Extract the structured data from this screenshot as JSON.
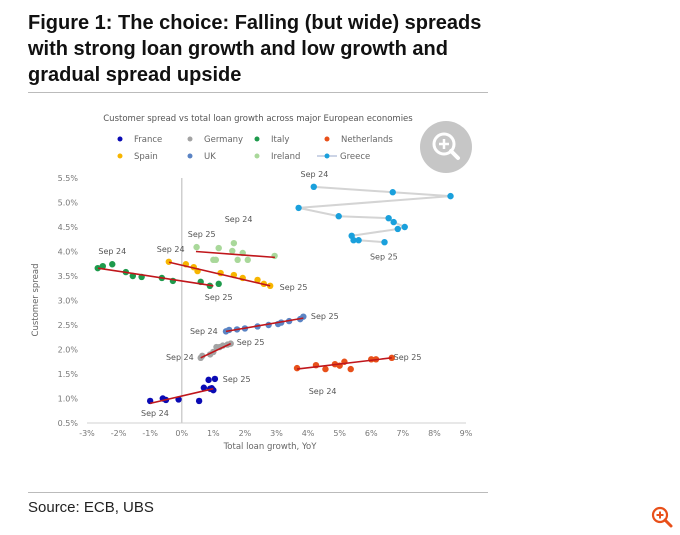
{
  "title": "Figure 1: The choice: Falling (but wide) spreads with strong loan growth and low growth and gradual spread upside",
  "source": "Source: ECB, UBS",
  "icons": {
    "chart_zoom": "zoom-in-icon",
    "corner_zoom": "zoom-in-icon"
  },
  "colors": {
    "trend": "#c0161b",
    "corner_icon": "#e8501a"
  },
  "chart_data": {
    "type": "scatter",
    "title": "Customer spread vs total loan growth across major European economies",
    "xlabel": "Total loan growth, YoY",
    "ylabel": "Customer spread",
    "xlim": [
      -3,
      9
    ],
    "ylim": [
      0.5,
      5.5
    ],
    "xticks": [
      "-3%",
      "-2%",
      "-1%",
      "0%",
      "1%",
      "2%",
      "3%",
      "4%",
      "5%",
      "6%",
      "7%",
      "8%",
      "9%"
    ],
    "yticks": [
      "0.5%",
      "1.0%",
      "1.5%",
      "2.0%",
      "2.5%",
      "3.0%",
      "3.5%",
      "4.0%",
      "4.5%",
      "5.0%",
      "5.5%"
    ],
    "grid": false,
    "legend_placement": "top",
    "series": [
      {
        "name": "France",
        "color": "#0a0ab4",
        "points": [
          [
            -1.0,
            0.95
          ],
          [
            -0.6,
            1.0
          ],
          [
            -0.5,
            0.97
          ],
          [
            -0.1,
            0.98
          ],
          [
            0.55,
            0.95
          ],
          [
            0.7,
            1.22
          ],
          [
            0.85,
            1.38
          ],
          [
            1.05,
            1.4
          ],
          [
            0.9,
            1.2
          ],
          [
            1.0,
            1.17
          ],
          [
            0.95,
            1.21
          ]
        ],
        "trend": [
          [
            -1.0,
            0.9
          ],
          [
            1.0,
            1.2
          ]
        ]
      },
      {
        "name": "Germany",
        "color": "#a3a3a3",
        "points": [
          [
            0.6,
            1.83
          ],
          [
            0.65,
            1.87
          ],
          [
            0.9,
            1.9
          ],
          [
            1.0,
            1.95
          ],
          [
            1.1,
            2.05
          ],
          [
            1.2,
            2.05
          ],
          [
            1.3,
            2.08
          ],
          [
            1.45,
            2.1
          ],
          [
            1.55,
            2.12
          ]
        ],
        "trend": [
          [
            0.6,
            1.83
          ],
          [
            1.55,
            2.12
          ]
        ]
      },
      {
        "name": "Italy",
        "color": "#1e9a4c",
        "points": [
          [
            -2.66,
            3.66
          ],
          [
            -2.5,
            3.7
          ],
          [
            -2.2,
            3.74
          ],
          [
            -1.77,
            3.58
          ],
          [
            -1.55,
            3.5
          ],
          [
            -1.27,
            3.48
          ],
          [
            -0.63,
            3.46
          ],
          [
            -0.28,
            3.4
          ],
          [
            0.6,
            3.38
          ],
          [
            0.89,
            3.3
          ],
          [
            1.17,
            3.34
          ]
        ],
        "trend": [
          [
            -2.65,
            3.66
          ],
          [
            1.0,
            3.3
          ]
        ]
      },
      {
        "name": "Netherlands",
        "color": "#e8501a",
        "points": [
          [
            3.65,
            1.62
          ],
          [
            4.25,
            1.68
          ],
          [
            4.55,
            1.6
          ],
          [
            4.85,
            1.7
          ],
          [
            5.0,
            1.67
          ],
          [
            5.15,
            1.75
          ],
          [
            5.35,
            1.6
          ],
          [
            6.0,
            1.8
          ],
          [
            6.15,
            1.8
          ],
          [
            6.65,
            1.83
          ]
        ],
        "trend": [
          [
            3.65,
            1.6
          ],
          [
            6.65,
            1.83
          ]
        ]
      },
      {
        "name": "Spain",
        "color": "#f7b500",
        "points": [
          [
            -0.41,
            3.79
          ],
          [
            0.13,
            3.74
          ],
          [
            0.38,
            3.68
          ],
          [
            0.5,
            3.6
          ],
          [
            1.23,
            3.56
          ],
          [
            1.65,
            3.52
          ],
          [
            1.93,
            3.46
          ],
          [
            2.4,
            3.42
          ],
          [
            2.6,
            3.34
          ],
          [
            2.8,
            3.3
          ]
        ],
        "trend": [
          [
            -0.4,
            3.78
          ],
          [
            2.8,
            3.3
          ]
        ]
      },
      {
        "name": "UK",
        "color": "#5b84c4",
        "points": [
          [
            1.4,
            2.37
          ],
          [
            1.5,
            2.4
          ],
          [
            1.75,
            2.41
          ],
          [
            2.0,
            2.43
          ],
          [
            2.4,
            2.47
          ],
          [
            2.75,
            2.5
          ],
          [
            3.05,
            2.52
          ],
          [
            3.15,
            2.55
          ],
          [
            3.4,
            2.58
          ],
          [
            3.75,
            2.62
          ],
          [
            3.85,
            2.67
          ]
        ],
        "trend": [
          [
            1.4,
            2.37
          ],
          [
            3.85,
            2.64
          ]
        ]
      },
      {
        "name": "Ireland",
        "color": "#a9d89a",
        "points": [
          [
            0.47,
            4.09
          ],
          [
            1.0,
            3.83
          ],
          [
            1.08,
            3.83
          ],
          [
            1.17,
            4.07
          ],
          [
            1.6,
            4.01
          ],
          [
            1.65,
            4.17
          ],
          [
            1.93,
            3.97
          ],
          [
            1.77,
            3.83
          ],
          [
            2.09,
            3.83
          ],
          [
            2.94,
            3.91
          ]
        ],
        "trend": [
          [
            0.45,
            4.0
          ],
          [
            2.95,
            3.88
          ]
        ]
      },
      {
        "name": "Greece",
        "color": "#1aa0dc",
        "line": true,
        "points": [
          [
            4.18,
            5.32
          ],
          [
            6.68,
            5.21
          ],
          [
            8.51,
            5.13
          ],
          [
            3.7,
            4.89
          ],
          [
            4.97,
            4.72
          ],
          [
            6.55,
            4.68
          ],
          [
            6.71,
            4.6
          ],
          [
            7.06,
            4.5
          ],
          [
            6.84,
            4.46
          ],
          [
            5.38,
            4.32
          ],
          [
            5.44,
            4.23
          ],
          [
            5.6,
            4.23
          ],
          [
            6.42,
            4.19
          ]
        ]
      }
    ],
    "annotations": [
      {
        "text": "Sep 24",
        "x": 4.2,
        "y": 5.58
      },
      {
        "text": "Sep 25",
        "x": 6.4,
        "y": 3.9
      },
      {
        "text": "Sep 24",
        "x": -2.2,
        "y": 4.01
      },
      {
        "text": "Sep 25",
        "x": 1.17,
        "y": 3.07
      },
      {
        "text": "Sep 24",
        "x": -0.35,
        "y": 4.05
      },
      {
        "text": "Sep 25",
        "x": 3.54,
        "y": 3.28
      },
      {
        "text": "Sep 25",
        "x": 0.63,
        "y": 4.36
      },
      {
        "text": "Sep 24",
        "x": 1.8,
        "y": 4.66
      },
      {
        "text": "Sep 24",
        "x": 0.7,
        "y": 2.38
      },
      {
        "text": "Sep 25",
        "x": 4.53,
        "y": 2.68
      },
      {
        "text": "Sep 24",
        "x": -0.06,
        "y": 1.85
      },
      {
        "text": "Sep 25",
        "x": 2.18,
        "y": 2.15
      },
      {
        "text": "Sep 25",
        "x": 7.15,
        "y": 1.85
      },
      {
        "text": "Sep 24",
        "x": 4.46,
        "y": 1.15
      },
      {
        "text": "Sep 25",
        "x": 1.74,
        "y": 1.4
      },
      {
        "text": "Sep 24",
        "x": -0.85,
        "y": 0.7
      }
    ]
  }
}
